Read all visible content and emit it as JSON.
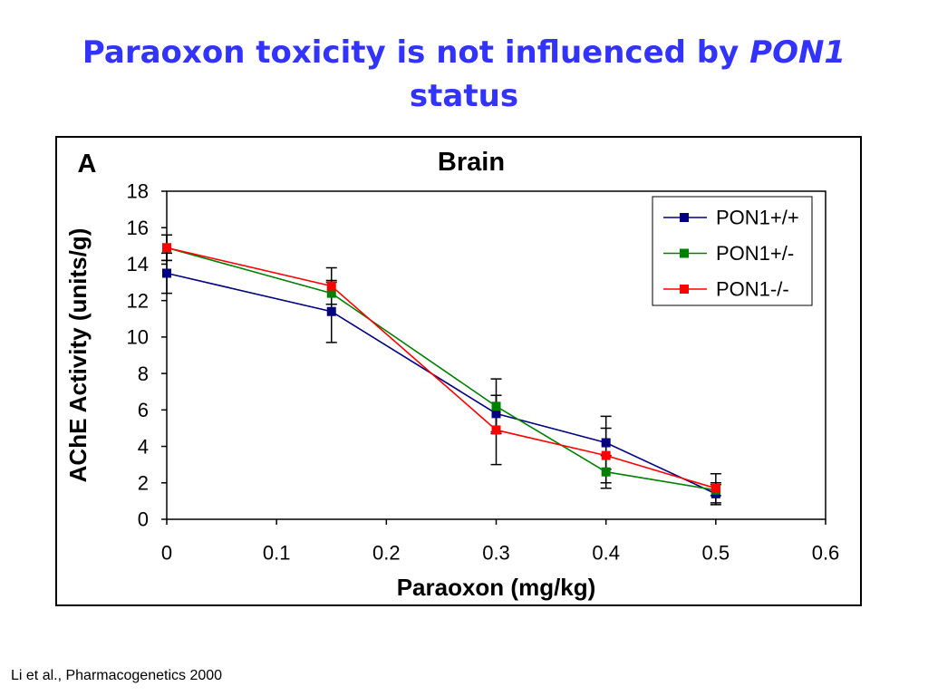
{
  "slide": {
    "title": {
      "text": "Paraoxon toxicity is not influenced by",
      "emphasis": "PON1",
      "continuation": "status"
    },
    "title_color": "#3333ff",
    "citation": "Li et al., Pharmacogenetics 2000"
  },
  "chart_data": {
    "type": "line",
    "panel_label": "A",
    "title": "Brain",
    "xlabel": "Paraoxon (mg/kg)",
    "ylabel": "AChE Activity (units/g)",
    "x": [
      0,
      0.15,
      0.3,
      0.4,
      0.5
    ],
    "xlim": [
      0,
      0.6
    ],
    "ylim": [
      0,
      18
    ],
    "x_ticks": [
      0,
      0.1,
      0.2,
      0.3,
      0.4,
      0.5,
      0.6
    ],
    "y_ticks": [
      0,
      2,
      4,
      6,
      8,
      10,
      12,
      14,
      16,
      18
    ],
    "grid": false,
    "legend": "top-right",
    "error_bar_color": "#000000",
    "series": [
      {
        "name": "PON1+/+",
        "color": "#000080",
        "values": [
          13.5,
          11.4,
          5.8,
          4.2,
          1.4
        ],
        "error": [
          1.1,
          1.7,
          1.0,
          1.45,
          0.6
        ]
      },
      {
        "name": "PON1+/-",
        "color": "#008000",
        "values": [
          14.9,
          12.4,
          6.2,
          2.6,
          1.6
        ],
        "error": [
          0.7,
          0.6,
          1.5,
          0.9,
          0.3
        ]
      },
      {
        "name": "PON1-/-",
        "color": "#ff0000",
        "values": [
          14.9,
          12.8,
          4.9,
          3.5,
          1.7
        ],
        "error": [
          0.7,
          1.0,
          1.9,
          1.5,
          0.8
        ]
      }
    ]
  }
}
